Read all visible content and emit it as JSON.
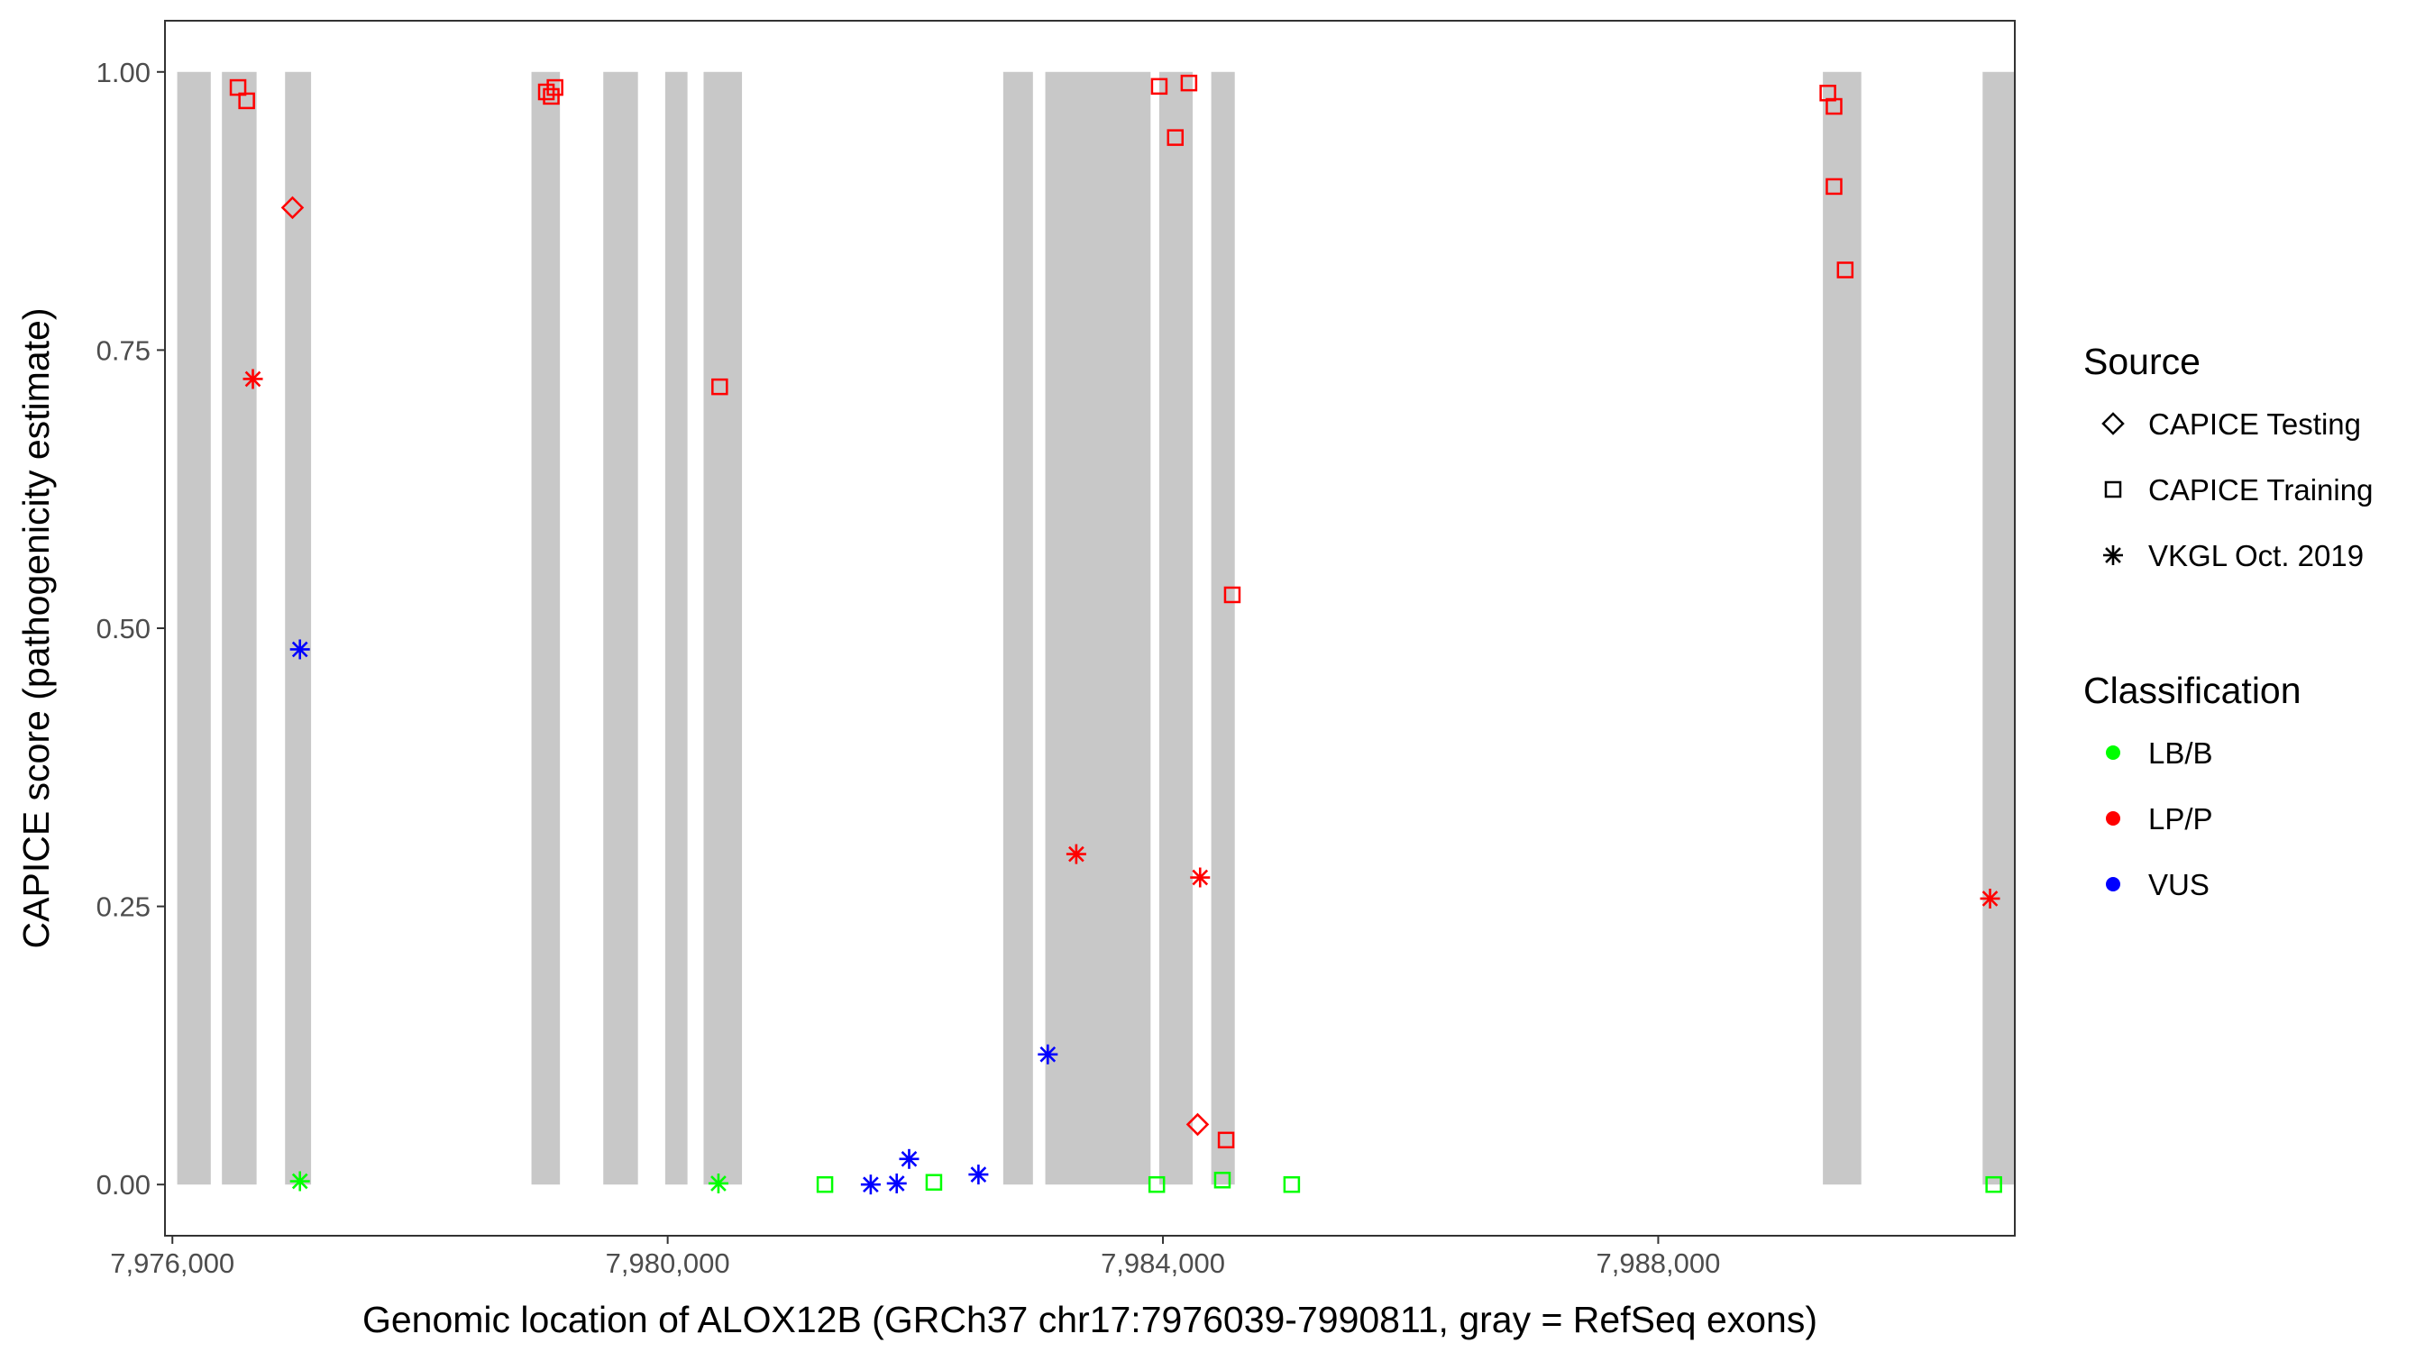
{
  "chart_data": {
    "type": "scatter",
    "xlabel": "Genomic location of ALOX12B (GRCh37 chr17:7976039-7990811, gray = RefSeq exons)",
    "ylabel": "CAPICE score (pathogenicity estimate)",
    "xlim": [
      7975940,
      7990880
    ],
    "ylim": [
      -0.046,
      1.046
    ],
    "x_ticks": [
      {
        "value": 7976000,
        "label": "7,976,000"
      },
      {
        "value": 7980000,
        "label": "7,980,000"
      },
      {
        "value": 7984000,
        "label": "7,984,000"
      },
      {
        "value": 7988000,
        "label": "7,988,000"
      }
    ],
    "y_ticks": [
      {
        "value": 0.0,
        "label": "0.00"
      },
      {
        "value": 0.25,
        "label": "0.25"
      },
      {
        "value": 0.5,
        "label": "0.50"
      },
      {
        "value": 0.75,
        "label": "0.75"
      },
      {
        "value": 1.0,
        "label": "1.00"
      }
    ],
    "exon_color": "#c8c8c8",
    "exons": [
      [
        7976039,
        7976310
      ],
      [
        7976400,
        7976680
      ],
      [
        7976910,
        7977120
      ],
      [
        7978900,
        7979130
      ],
      [
        7979480,
        7979760
      ],
      [
        7979980,
        7980160
      ],
      [
        7980290,
        7980600
      ],
      [
        7982710,
        7982950
      ],
      [
        7983050,
        7983900
      ],
      [
        7983970,
        7984240
      ],
      [
        7984390,
        7984580
      ],
      [
        7989330,
        7989640
      ],
      [
        7990620,
        7990880
      ]
    ],
    "legend": {
      "source_title": "Source",
      "source_entries": [
        {
          "label": "CAPICE Testing",
          "shape": "diamond"
        },
        {
          "label": "CAPICE Training",
          "shape": "square"
        },
        {
          "label": "VKGL Oct. 2019",
          "shape": "asterisk"
        }
      ],
      "class_title": "Classification",
      "class_entries": [
        {
          "label": "LB/B",
          "color": "#00ff00"
        },
        {
          "label": "LP/P",
          "color": "#ff0000"
        },
        {
          "label": "VUS",
          "color": "#0000ff"
        }
      ]
    },
    "series": [
      {
        "source": "CAPICE Training",
        "shape": "square",
        "classification": "LP/P",
        "color": "#ff0000",
        "points": [
          [
            7976530,
            0.986
          ],
          [
            7976600,
            0.974
          ],
          [
            7979020,
            0.982
          ],
          [
            7979060,
            0.978
          ],
          [
            7979090,
            0.986
          ],
          [
            7980420,
            0.717
          ],
          [
            7983970,
            0.987
          ],
          [
            7984100,
            0.941
          ],
          [
            7984210,
            0.99
          ],
          [
            7984510,
            0.04
          ],
          [
            7984560,
            0.53
          ],
          [
            7989370,
            0.981
          ],
          [
            7989420,
            0.969
          ],
          [
            7989420,
            0.897
          ],
          [
            7989510,
            0.822
          ]
        ]
      },
      {
        "source": "CAPICE Training",
        "shape": "square",
        "classification": "LB/B",
        "color": "#00ff00",
        "points": [
          [
            7981270,
            0.0
          ],
          [
            7982150,
            0.002
          ],
          [
            7983950,
            0.0
          ],
          [
            7984480,
            0.004
          ],
          [
            7985040,
            0.0
          ],
          [
            7990710,
            0.0
          ]
        ]
      },
      {
        "source": "CAPICE Testing",
        "shape": "diamond",
        "classification": "LP/P",
        "color": "#ff0000",
        "points": [
          [
            7976970,
            0.878
          ],
          [
            7984280,
            0.054
          ]
        ]
      },
      {
        "source": "VKGL Oct. 2019",
        "shape": "asterisk",
        "classification": "LP/P",
        "color": "#ff0000",
        "points": [
          [
            7976650,
            0.724
          ],
          [
            7983300,
            0.297
          ],
          [
            7984300,
            0.276
          ],
          [
            7990680,
            0.257
          ]
        ]
      },
      {
        "source": "VKGL Oct. 2019",
        "shape": "asterisk",
        "classification": "VUS",
        "color": "#0000ff",
        "points": [
          [
            7977030,
            0.481
          ],
          [
            7981640,
            0.0
          ],
          [
            7981850,
            0.001
          ],
          [
            7981950,
            0.023
          ],
          [
            7982510,
            0.009
          ],
          [
            7983070,
            0.117
          ]
        ]
      },
      {
        "source": "VKGL Oct. 2019",
        "shape": "asterisk",
        "classification": "LB/B",
        "color": "#00ff00",
        "points": [
          [
            7977030,
            0.003
          ],
          [
            7980410,
            0.001
          ]
        ]
      }
    ]
  }
}
